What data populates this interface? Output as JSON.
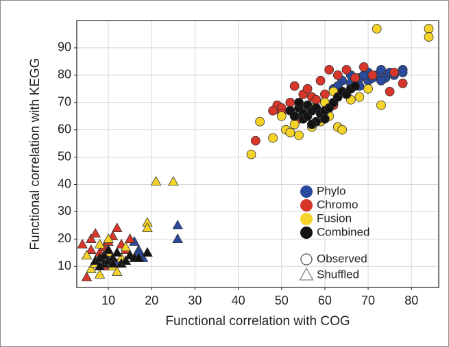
{
  "chart_data": {
    "type": "scatter",
    "x_label": "Functional correlation with COG",
    "y_label": "Functional correlation with KEGG",
    "xlim": [
      2.7,
      86.3
    ],
    "ylim": [
      2.3,
      100
    ],
    "xticks": [
      10,
      20,
      30,
      40,
      50,
      60,
      70,
      80
    ],
    "yticks": [
      10,
      20,
      30,
      40,
      50,
      60,
      70,
      80,
      90
    ],
    "grid": true,
    "shapes": [
      {
        "name": "Observed",
        "marker": "circle"
      },
      {
        "name": "Shuffled",
        "marker": "triangle"
      }
    ],
    "series": [
      {
        "name": "Phylo",
        "color": "#2a4a9e",
        "points": [
          {
            "x": [
              62,
              64,
              66,
              68,
              70,
              72,
              73,
              74,
              75,
              76,
              78,
              78,
              68,
              66,
              70,
              71,
              64,
              63,
              73,
              69
            ],
            "y": [
              75,
              78,
              80,
              79,
              81,
              80,
              82,
              79,
              81,
              80,
              82,
              81,
              76,
              77,
              78,
              79,
              74,
              76,
              78,
              80
            ]
          },
          {
            "x": [
              16,
              17,
              15,
              18,
              26,
              26,
              14,
              19,
              12,
              17
            ],
            "y": [
              19,
              16,
              14,
              13,
              25,
              20,
              12,
              15,
              11,
              15
            ]
          }
        ]
      },
      {
        "name": "Chromo",
        "color": "#d8362b",
        "points": [
          {
            "x": [
              44,
              49,
              50,
              52,
              53,
              55,
              57,
              58,
              60,
              61,
              63,
              65,
              67,
              69,
              71,
              76,
              78,
              75,
              50,
              54,
              56,
              59,
              62,
              48
            ],
            "y": [
              56,
              69,
              68,
              70,
              76,
              73,
              72,
              71,
              73,
              82,
              80,
              82,
              79,
              83,
              80,
              81,
              77,
              74,
              66,
              64,
              75,
              78,
              69,
              67
            ]
          },
          {
            "x": [
              4,
              5,
              6,
              7,
              8,
              9,
              10,
              11,
              12,
              13,
              14,
              15,
              7,
              9,
              6
            ],
            "y": [
              18,
              6,
              20,
              22,
              15,
              17,
              19,
              21,
              24,
              18,
              16,
              20,
              12,
              10,
              16
            ]
          }
        ]
      },
      {
        "name": "Fusion",
        "color": "#f5d328",
        "points": [
          {
            "x": [
              43,
              45,
              48,
              50,
              51,
              52,
              53,
              55,
              57,
              59,
              61,
              63,
              64,
              66,
              68,
              70,
              72,
              73,
              84,
              84,
              60,
              57,
              54,
              62
            ],
            "y": [
              51,
              63,
              57,
              65,
              60,
              59,
              62,
              66,
              61,
              63,
              65,
              61,
              60,
              71,
              72,
              75,
              97,
              69,
              97,
              94,
              70,
              68,
              58,
              74
            ]
          },
          {
            "x": [
              21,
              25,
              19,
              19,
              5,
              6,
              7,
              8,
              9,
              10,
              11,
              12,
              13,
              14,
              10,
              8
            ],
            "y": [
              41,
              41,
              26,
              24,
              14,
              9,
              11,
              7,
              12,
              15,
              10,
              8,
              13,
              17,
              20,
              18
            ]
          }
        ]
      },
      {
        "name": "Combined",
        "color": "#141414",
        "points": [
          {
            "x": [
              52,
              53,
              54,
              55,
              55,
              56,
              56,
              57,
              58,
              58,
              59,
              60,
              61,
              62,
              63,
              64,
              65,
              66,
              67,
              54,
              57,
              60
            ],
            "y": [
              67,
              65,
              68,
              66,
              64,
              69,
              65,
              67,
              63,
              68,
              66,
              67,
              68,
              70,
              72,
              74,
              73,
              75,
              76,
              70,
              62,
              64
            ]
          },
          {
            "x": [
              7,
              8,
              9,
              9,
              10,
              11,
              12,
              13,
              14,
              15,
              16,
              17,
              19,
              8,
              10,
              11
            ],
            "y": [
              12,
              13,
              11,
              14,
              12,
              13,
              15,
              11,
              12,
              14,
              13,
              13,
              15,
              10,
              16,
              11
            ]
          }
        ]
      }
    ]
  }
}
